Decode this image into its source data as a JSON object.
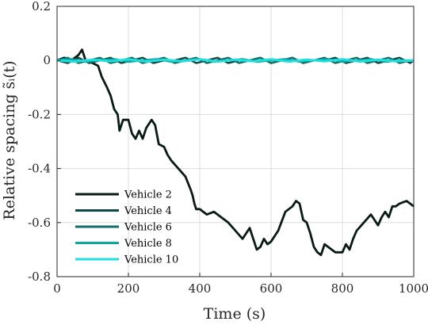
{
  "chart_data": {
    "type": "line",
    "title": "",
    "xlabel": "Time (s)",
    "ylabel": "Relative spacing s̃ᵢ(t)",
    "xlim": [
      0,
      1000
    ],
    "ylim": [
      -0.8,
      0.2
    ],
    "xticks": [
      0,
      200,
      400,
      600,
      800,
      1000
    ],
    "yticks": [
      -0.8,
      -0.6,
      -0.4,
      -0.2,
      0,
      0.2
    ],
    "xtick_labels": [
      "0",
      "200",
      "400",
      "600",
      "800",
      "1000"
    ],
    "ytick_labels": [
      "-0.8",
      "-0.6",
      "-0.4",
      "-0.2",
      "0",
      "0.2"
    ],
    "grid": true,
    "legend_position": "bottom-left",
    "series": [
      {
        "name": "Vehicle 2",
        "color": "#0a1a14",
        "x": [
          0,
          20,
          40,
          60,
          70,
          80,
          100,
          115,
          125,
          140,
          150,
          160,
          170,
          175,
          185,
          200,
          210,
          220,
          230,
          240,
          250,
          265,
          275,
          285,
          300,
          310,
          320,
          340,
          360,
          375,
          380,
          385,
          390,
          400,
          420,
          440,
          460,
          480,
          500,
          520,
          540,
          560,
          570,
          580,
          590,
          600,
          620,
          640,
          660,
          670,
          680,
          690,
          700,
          710,
          720,
          730,
          740,
          750,
          760,
          780,
          800,
          810,
          820,
          830,
          840,
          860,
          880,
          900,
          910,
          920,
          930,
          940,
          950,
          960,
          980,
          1000
        ],
        "y": [
          0.0,
          0.01,
          0.0,
          0.02,
          0.04,
          0.0,
          -0.01,
          -0.02,
          -0.06,
          -0.1,
          -0.13,
          -0.18,
          -0.2,
          -0.26,
          -0.22,
          -0.22,
          -0.27,
          -0.29,
          -0.26,
          -0.29,
          -0.25,
          -0.22,
          -0.24,
          -0.31,
          -0.32,
          -0.35,
          -0.37,
          -0.4,
          -0.43,
          -0.48,
          -0.5,
          -0.53,
          -0.55,
          -0.55,
          -0.57,
          -0.56,
          -0.58,
          -0.6,
          -0.63,
          -0.66,
          -0.62,
          -0.7,
          -0.69,
          -0.66,
          -0.68,
          -0.67,
          -0.63,
          -0.56,
          -0.54,
          -0.52,
          -0.53,
          -0.59,
          -0.6,
          -0.64,
          -0.69,
          -0.71,
          -0.72,
          -0.68,
          -0.69,
          -0.71,
          -0.71,
          -0.68,
          -0.7,
          -0.66,
          -0.63,
          -0.6,
          -0.57,
          -0.61,
          -0.58,
          -0.56,
          -0.58,
          -0.54,
          -0.54,
          -0.53,
          -0.52,
          -0.54
        ]
      },
      {
        "name": "Vehicle 4",
        "color": "#0d4a47",
        "x": [
          0,
          30,
          60,
          90,
          120,
          150,
          180,
          210,
          240,
          270,
          300,
          330,
          360,
          390,
          420,
          450,
          480,
          510,
          540,
          570,
          600,
          630,
          660,
          690,
          720,
          750,
          780,
          810,
          840,
          870,
          900,
          930,
          960,
          990,
          1000
        ],
        "y": [
          0.0,
          -0.01,
          0.01,
          -0.01,
          0.0,
          0.01,
          -0.01,
          0.0,
          0.01,
          -0.01,
          0.0,
          0.0,
          0.01,
          -0.01,
          0.0,
          0.01,
          -0.01,
          0.0,
          0.0,
          0.01,
          -0.01,
          0.0,
          0.01,
          -0.01,
          0.0,
          0.0,
          0.01,
          -0.01,
          0.0,
          0.01,
          -0.01,
          0.0,
          0.01,
          -0.01,
          0.0
        ]
      },
      {
        "name": "Vehicle 6",
        "color": "#136e69",
        "x": [
          0,
          30,
          60,
          90,
          120,
          150,
          180,
          210,
          240,
          270,
          300,
          330,
          360,
          390,
          420,
          450,
          480,
          510,
          540,
          570,
          600,
          630,
          660,
          690,
          720,
          750,
          780,
          810,
          840,
          870,
          900,
          930,
          960,
          990,
          1000
        ],
        "y": [
          0.0,
          0.01,
          -0.01,
          0.0,
          0.01,
          -0.01,
          0.0,
          0.01,
          -0.01,
          0.0,
          0.01,
          -0.01,
          0.0,
          0.01,
          -0.01,
          0.0,
          0.01,
          -0.01,
          0.0,
          0.01,
          -0.01,
          0.0,
          0.01,
          -0.01,
          0.0,
          0.01,
          -0.01,
          0.0,
          0.01,
          -0.01,
          0.0,
          0.01,
          -0.01,
          0.0,
          0.0
        ]
      },
      {
        "name": "Vehicle 8",
        "color": "#0fa6a0",
        "x": [
          0,
          40,
          80,
          120,
          160,
          200,
          240,
          280,
          320,
          360,
          400,
          440,
          480,
          520,
          560,
          600,
          640,
          680,
          720,
          760,
          800,
          840,
          880,
          920,
          960,
          1000
        ],
        "y": [
          0.0,
          0.005,
          -0.005,
          0.0,
          0.005,
          -0.005,
          0.0,
          0.005,
          -0.005,
          0.0,
          0.005,
          -0.005,
          0.0,
          0.005,
          -0.005,
          0.0,
          0.005,
          -0.005,
          0.0,
          0.005,
          -0.005,
          0.0,
          0.005,
          -0.005,
          0.0,
          0.0
        ]
      },
      {
        "name": "Vehicle 10",
        "color": "#1ee0dc",
        "x": [
          0,
          50,
          100,
          150,
          200,
          250,
          300,
          350,
          400,
          450,
          500,
          550,
          600,
          650,
          700,
          750,
          800,
          850,
          900,
          950,
          1000
        ],
        "y": [
          0.0,
          -0.004,
          0.003,
          -0.003,
          0.004,
          -0.004,
          0.003,
          -0.003,
          0.004,
          -0.004,
          0.003,
          -0.003,
          0.004,
          -0.004,
          0.003,
          -0.003,
          0.004,
          -0.004,
          0.003,
          -0.003,
          0.0
        ]
      }
    ]
  }
}
